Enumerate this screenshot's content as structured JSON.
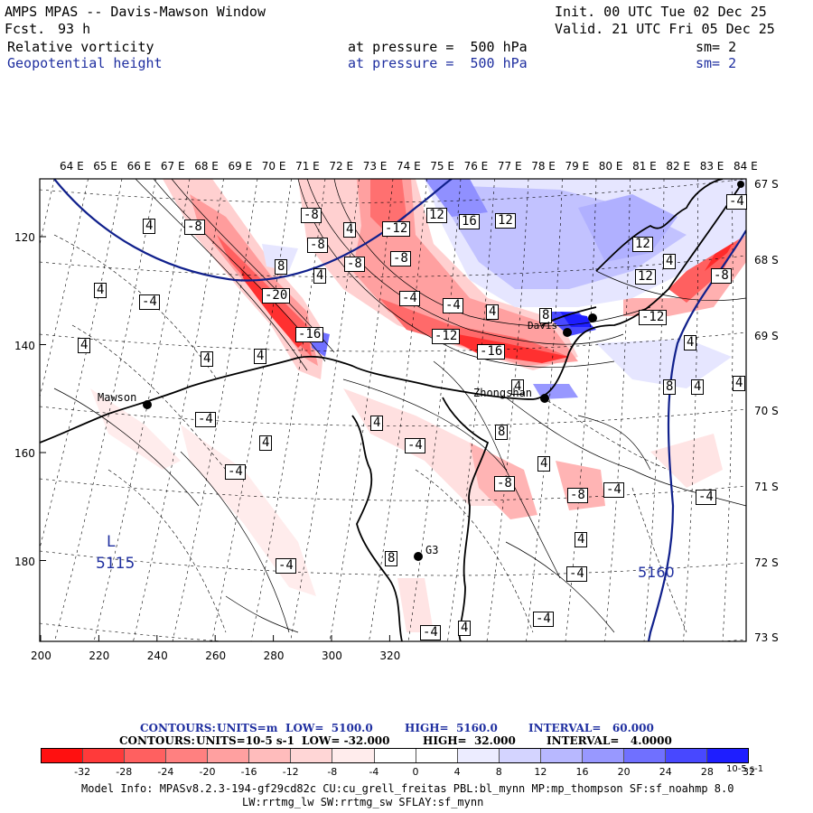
{
  "header": {
    "title": "AMPS MPAS -- Davis-Mawson Window",
    "forecast_label": "Fcst.",
    "forecast_hours": "93 h",
    "init": "Init. 00 UTC Tue 02 Dec 25",
    "valid": "Valid. 21 UTC Fri 05 Dec 25",
    "field1": {
      "name": "Relative vorticity",
      "level": "at pressure =  500 hPa",
      "smooth": "sm= 2"
    },
    "field2": {
      "name": "Geopotential height",
      "level": "at pressure =  500 hPa",
      "smooth": "sm= 2"
    }
  },
  "map": {
    "lon_labels": [
      "64 E",
      "65 E",
      "66 E",
      "67 E",
      "68 E",
      "69 E",
      "70 E",
      "71 E",
      "72 E",
      "73 E",
      "74 E",
      "75 E",
      "76 E",
      "77 E",
      "78 E",
      "79 E",
      "80 E",
      "81 E",
      "82 E",
      "83 E",
      "84 E"
    ],
    "lat_labels": [
      "67 S",
      "68 S",
      "69 S",
      "70 S",
      "71 S",
      "72 S",
      "73 S"
    ],
    "x_ticks": [
      "200",
      "220",
      "240",
      "260",
      "280",
      "300",
      "320"
    ],
    "y_ticks": [
      "120",
      "140",
      "160",
      "180"
    ],
    "stations": [
      {
        "name": "Mawson"
      },
      {
        "name": "Zhongshan"
      },
      {
        "name": "G3"
      },
      {
        "name": "Davis"
      }
    ],
    "lows": [
      {
        "symbol": "L",
        "value": "5115"
      }
    ],
    "height_labels": [
      "5160"
    ],
    "vort_labels": [
      {
        "v": "-8",
        "x": 204,
        "y": 243
      },
      {
        "v": "4",
        "x": 158,
        "y": 242
      },
      {
        "v": "-8",
        "x": 333,
        "y": 230
      },
      {
        "v": "4",
        "x": 380,
        "y": 246
      },
      {
        "v": "-12",
        "x": 423,
        "y": 245
      },
      {
        "v": "12",
        "x": 472,
        "y": 230
      },
      {
        "v": "16",
        "x": 508,
        "y": 237
      },
      {
        "v": "12",
        "x": 548,
        "y": 236
      },
      {
        "v": "-8",
        "x": 340,
        "y": 263
      },
      {
        "v": "-8",
        "x": 381,
        "y": 284
      },
      {
        "v": "-8",
        "x": 432,
        "y": 278
      },
      {
        "v": "8",
        "x": 304,
        "y": 287
      },
      {
        "v": "4",
        "x": 347,
        "y": 297
      },
      {
        "v": "4",
        "x": 104,
        "y": 313
      },
      {
        "v": "-4",
        "x": 154,
        "y": 326
      },
      {
        "v": "-20",
        "x": 290,
        "y": 319
      },
      {
        "v": "-4",
        "x": 442,
        "y": 322
      },
      {
        "v": "-4",
        "x": 490,
        "y": 330
      },
      {
        "v": "4",
        "x": 538,
        "y": 337
      },
      {
        "v": "8",
        "x": 597,
        "y": 341
      },
      {
        "v": "12",
        "x": 700,
        "y": 262
      },
      {
        "v": "12",
        "x": 703,
        "y": 298
      },
      {
        "v": "4",
        "x": 734,
        "y": 281
      },
      {
        "v": "-4",
        "x": 804,
        "y": 215
      },
      {
        "v": "-8",
        "x": 787,
        "y": 297
      },
      {
        "v": "-12",
        "x": 707,
        "y": 343
      },
      {
        "v": "4",
        "x": 86,
        "y": 374
      },
      {
        "v": "4",
        "x": 222,
        "y": 389
      },
      {
        "v": "4",
        "x": 281,
        "y": 386
      },
      {
        "v": "-16",
        "x": 327,
        "y": 362
      },
      {
        "v": "-12",
        "x": 478,
        "y": 364
      },
      {
        "v": "-16",
        "x": 528,
        "y": 381
      },
      {
        "v": "4",
        "x": 757,
        "y": 371
      },
      {
        "v": "8",
        "x": 734,
        "y": 420
      },
      {
        "v": "4",
        "x": 765,
        "y": 420
      },
      {
        "v": "4",
        "x": 811,
        "y": 416
      },
      {
        "v": "4",
        "x": 566,
        "y": 420
      },
      {
        "v": "-4",
        "x": 216,
        "y": 456
      },
      {
        "v": "4",
        "x": 410,
        "y": 460
      },
      {
        "v": "-4",
        "x": 448,
        "y": 485
      },
      {
        "v": "8",
        "x": 548,
        "y": 470
      },
      {
        "v": "4",
        "x": 287,
        "y": 482
      },
      {
        "v": "-4",
        "x": 249,
        "y": 514
      },
      {
        "v": "4",
        "x": 595,
        "y": 505
      },
      {
        "v": "-8",
        "x": 547,
        "y": 527
      },
      {
        "v": "-8",
        "x": 628,
        "y": 540
      },
      {
        "v": "-4",
        "x": 668,
        "y": 534
      },
      {
        "v": "-4",
        "x": 770,
        "y": 542
      },
      {
        "v": "4",
        "x": 636,
        "y": 589
      },
      {
        "v": "8",
        "x": 426,
        "y": 610
      },
      {
        "v": "-4",
        "x": 305,
        "y": 618
      },
      {
        "v": "-4",
        "x": 627,
        "y": 627
      },
      {
        "v": "-4",
        "x": 590,
        "y": 677
      },
      {
        "v": "-4",
        "x": 465,
        "y": 692
      },
      {
        "v": "4",
        "x": 507,
        "y": 687
      }
    ]
  },
  "footer": {
    "contour1": {
      "label": "CONTOURS:",
      "units": "UNITS=m",
      "low": "LOW=  5100.0",
      "high": "HIGH=  5160.0",
      "interval": "INTERVAL=   60.000"
    },
    "contour2": {
      "label": "CONTOURS:",
      "units": "UNITS=10-5 s-1",
      "low": "LOW= -32.000",
      "high": "HIGH=  32.000",
      "interval": "INTERVAL=   4.0000"
    },
    "colorbar": {
      "colors": [
        "#ff1010",
        "#ff3a3a",
        "#ff6060",
        "#ff8080",
        "#ffa0a0",
        "#ffbcbc",
        "#ffd6d6",
        "#ffecec",
        "#ffffff",
        "#ffffff",
        "#ececff",
        "#d4d4ff",
        "#b8b8ff",
        "#9898ff",
        "#7070ff",
        "#4848ff",
        "#1e1eff"
      ],
      "labels": [
        "-32",
        "-28",
        "-24",
        "-20",
        "-16",
        "-12",
        "-8",
        "-4",
        "0",
        "4",
        "8",
        "12",
        "16",
        "20",
        "24",
        "28",
        "32"
      ],
      "unit": "10-5 s-1"
    },
    "model_info_1": "Model Info: MPASv8.2.3-194-gf29cd82c CU:cu_grell_freitas PBL:bl_mynn MP:mp_thompson SF:sf_noahmp 8.0",
    "model_info_2": "LW:rrtmg_lw SW:rrtmg_sw SFLAY:sf_mynn"
  },
  "colors": {
    "title_blue": "#1f2fa0",
    "height_contour": "#10208c",
    "coast": "#000000"
  }
}
